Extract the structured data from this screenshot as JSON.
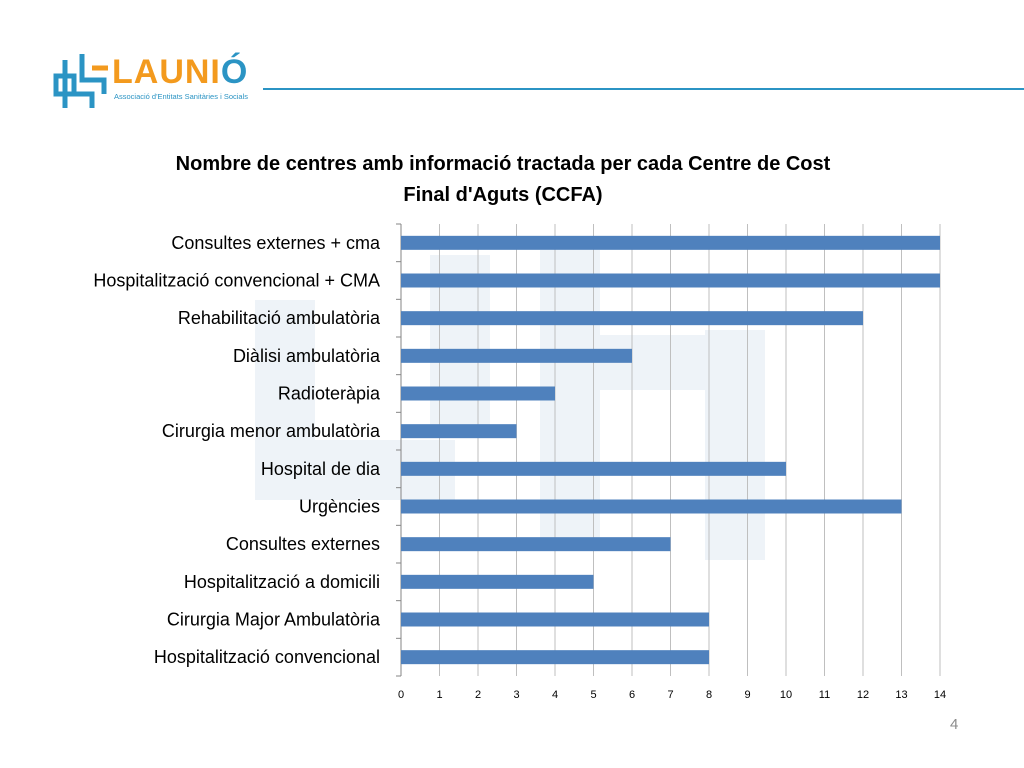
{
  "logo": {
    "word_main": "LAUNI",
    "word_accent": "Ó",
    "tagline": "Associació d'Entitats Sanitàries i Socials",
    "color_blue": "#2b94c4",
    "color_orange": "#f39a1e"
  },
  "chart_data": {
    "type": "bar",
    "orientation": "horizontal",
    "title_line1": "Nombre de centres amb informació tractada per cada Centre de Cost",
    "title_line2": "Final d'Aguts (CCFA)",
    "categories": [
      "Consultes externes + cma",
      "Hospitalització convencional + CMA",
      "Rehabilitació ambulatòria",
      "Diàlisi ambulatòria",
      "Radioteràpia",
      "Cirurgia menor ambulatòria",
      "Hospital de dia",
      "Urgències",
      "Consultes externes",
      "Hospitalització a domicili",
      "Cirurgia Major Ambulatòria",
      "Hospitalització convencional"
    ],
    "values": [
      14,
      14,
      12,
      6,
      4,
      3,
      10,
      13,
      7,
      5,
      8,
      8
    ],
    "xlim": [
      0,
      14
    ],
    "x_ticks": [
      "0",
      "1",
      "2",
      "3",
      "4",
      "5",
      "6",
      "7",
      "8",
      "9",
      "10",
      "11",
      "12",
      "13",
      "14"
    ],
    "grid": "vertical",
    "bar_color": "#4f81bd"
  },
  "page_number": "4"
}
